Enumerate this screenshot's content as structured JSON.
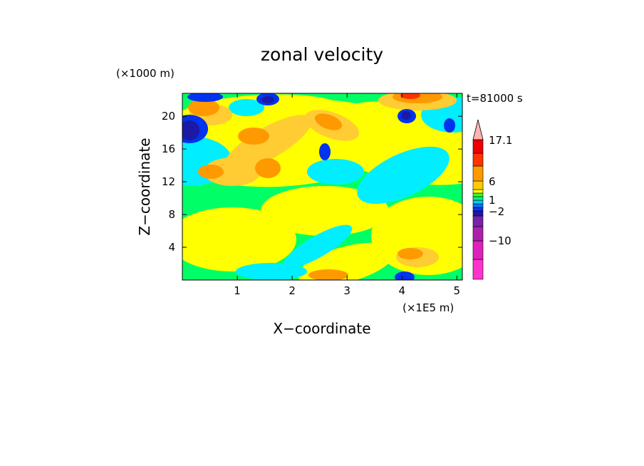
{
  "chart_data": {
    "type": "heatmap",
    "title": "zonal velocity",
    "time_label": "t=81000 s",
    "xlabel": "X−coordinate",
    "ylabel": "Z−coordinate",
    "x_units": "(×1E5 m)",
    "z_units": "(×1000 m)",
    "xlim": [
      0,
      5.1
    ],
    "ylim": [
      0,
      22.8
    ],
    "x_ticks": [
      1,
      2,
      3,
      4,
      5
    ],
    "x_tick_labels": [
      "1",
      "2",
      "3",
      "4",
      "5"
    ],
    "y_ticks": [
      4,
      8,
      12,
      16,
      20
    ],
    "y_tick_labels": [
      "4",
      "8",
      "12",
      "16",
      "20"
    ],
    "colorbar": {
      "labels": [
        "17.1",
        "6",
        "1",
        "−2",
        "−10"
      ],
      "label_values": [
        17.1,
        6,
        1,
        -2,
        -10
      ],
      "colors": [
        "#ff33cc",
        "#dd22bb",
        "#aa22aa",
        "#7722aa",
        "#1a1aa6",
        "#1133ee",
        "#0077ff",
        "#00ccff",
        "#00ff66",
        "#33ff33",
        "#ffff00",
        "#ffcc00",
        "#ff9900",
        "#ff3300",
        "#ee0000",
        "#ff8888",
        "#ffb3b3"
      ]
    },
    "field_colors": {
      "green": "#00ff66",
      "yellow": "#ffff00",
      "cyan": "#00eeff",
      "orange": "#ff9900",
      "light_orange": "#ffcc33",
      "blue": "#0033ee",
      "dark_blue": "#1a1aa6",
      "red": "#ff3300"
    }
  }
}
